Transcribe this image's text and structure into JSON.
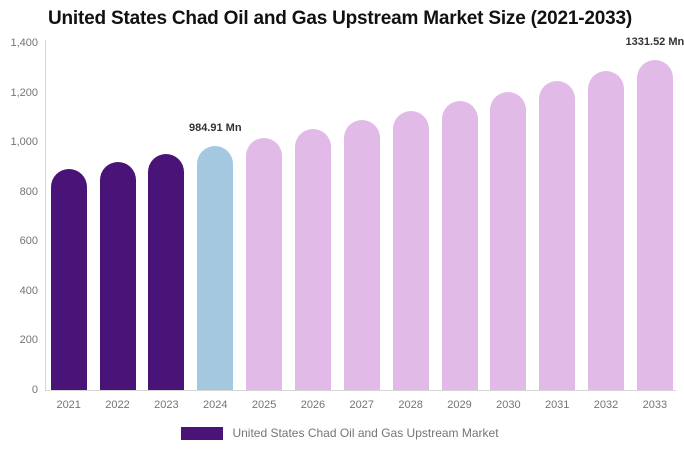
{
  "title": "United States Chad Oil and Gas Upstream Market Size (2021-2033)",
  "chart_data": {
    "type": "bar",
    "title": "United States Chad Oil and Gas Upstream Market Size (2021-2033)",
    "categories": [
      "2021",
      "2022",
      "2023",
      "2024",
      "2025",
      "2026",
      "2027",
      "2028",
      "2029",
      "2030",
      "2031",
      "2032",
      "2033"
    ],
    "values": [
      891,
      921,
      952,
      984.91,
      1018,
      1053,
      1089,
      1126,
      1165,
      1204,
      1245,
      1288,
      1331.52
    ],
    "colors": [
      "#4A1377",
      "#4A1377",
      "#4A1377",
      "#A3C8DF",
      "#E2BAE7",
      "#E2BAE7",
      "#E2BAE7",
      "#E2BAE7",
      "#E2BAE7",
      "#E2BAE7",
      "#E2BAE7",
      "#E2BAE7",
      "#E2BAE7"
    ],
    "ylim": [
      0,
      1400
    ],
    "ytick_values": [
      0,
      200,
      400,
      600,
      800,
      1000,
      1200,
      1400
    ],
    "ytick_labels": [
      "0",
      "200",
      "400",
      "600",
      "800",
      "1,000",
      "1,200",
      "1,400"
    ],
    "grid": false,
    "bar_cap": "rounded-top",
    "annotations": [
      {
        "category": "2024",
        "text": "984.91 Mn"
      },
      {
        "category": "2033",
        "text": "1331.52 Mn"
      }
    ],
    "legend_position": "bottom",
    "legend": [
      {
        "label": "United States Chad Oil and Gas Upstream Market",
        "color": "#4A1377"
      }
    ],
    "accent_colors": {
      "historical": "#4A1377",
      "current_year": "#A3C8DF",
      "forecast": "#E2BAE7"
    }
  }
}
